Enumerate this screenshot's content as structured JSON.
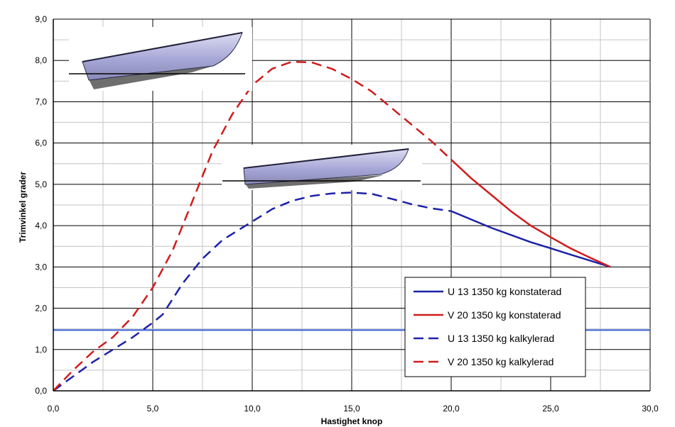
{
  "chart_data": {
    "type": "line",
    "title": "",
    "xlabel": "Hastighet knop",
    "ylabel": "Trimvinkel grader",
    "xlim": [
      0,
      30
    ],
    "ylim": [
      0,
      9
    ],
    "xticks": [
      0,
      5,
      10,
      15,
      20,
      25,
      30
    ],
    "yticks": [
      0,
      1,
      2,
      3,
      4,
      5,
      6,
      7,
      8,
      9
    ],
    "xtick_labels": [
      "0,0",
      "5,0",
      "10,0",
      "15,0",
      "20,0",
      "25,0",
      "30,0"
    ],
    "ytick_labels": [
      "0,0",
      "1,0",
      "2,0",
      "3,0",
      "4,0",
      "5,0",
      "6,0",
      "7,0",
      "8,0",
      "9,0"
    ],
    "grid": true,
    "legend_position": "bottom-right",
    "reference_line": {
      "y": 1.47,
      "color": "#3a5bd9",
      "x_range": [
        0,
        30
      ]
    },
    "series": [
      {
        "name": "U 13  1350 kg konstaterad",
        "color": "#1c22a8",
        "dash": "solid",
        "x": [
          20.0,
          22.0,
          24.0,
          25.0,
          26.0,
          27.0,
          28.0
        ],
        "y": [
          4.35,
          3.95,
          3.6,
          3.45,
          3.3,
          3.15,
          3.0
        ]
      },
      {
        "name": "V 20  1350 kg konstaterad",
        "color": "#d01c1c",
        "dash": "solid",
        "x": [
          20.0,
          21.0,
          22.0,
          23.0,
          24.0,
          25.0,
          26.0,
          27.0,
          28.0
        ],
        "y": [
          5.6,
          5.15,
          4.75,
          4.35,
          4.0,
          3.72,
          3.45,
          3.22,
          3.0
        ]
      },
      {
        "name": "U 13  1350 kg kalkylerad",
        "color": "#1c22a8",
        "dash": "dashed",
        "x": [
          0.0,
          1.0,
          2.0,
          3.0,
          4.0,
          5.0,
          5.5,
          6.5,
          7.5,
          8.5,
          10.0,
          11.0,
          12.0,
          13.0,
          14.0,
          15.0,
          16.0,
          17.0,
          18.0,
          19.0,
          20.0
        ],
        "y": [
          0.0,
          0.35,
          0.7,
          1.0,
          1.3,
          1.65,
          1.85,
          2.6,
          3.2,
          3.65,
          4.1,
          4.4,
          4.6,
          4.72,
          4.78,
          4.8,
          4.77,
          4.65,
          4.52,
          4.42,
          4.35
        ]
      },
      {
        "name": "V 20  1350 kg kalkylerad",
        "color": "#d01c1c",
        "dash": "dashed",
        "x": [
          0.0,
          1.0,
          2.0,
          3.0,
          4.0,
          5.0,
          6.0,
          7.0,
          8.0,
          9.0,
          10.0,
          11.0,
          12.0,
          13.0,
          14.0,
          15.0,
          16.0,
          17.0,
          18.0,
          19.0,
          20.0
        ],
        "y": [
          0.0,
          0.5,
          0.95,
          1.3,
          1.8,
          2.5,
          3.4,
          4.6,
          5.8,
          6.7,
          7.4,
          7.8,
          7.97,
          7.95,
          7.8,
          7.55,
          7.25,
          6.85,
          6.45,
          6.05,
          5.6
        ]
      }
    ]
  }
}
